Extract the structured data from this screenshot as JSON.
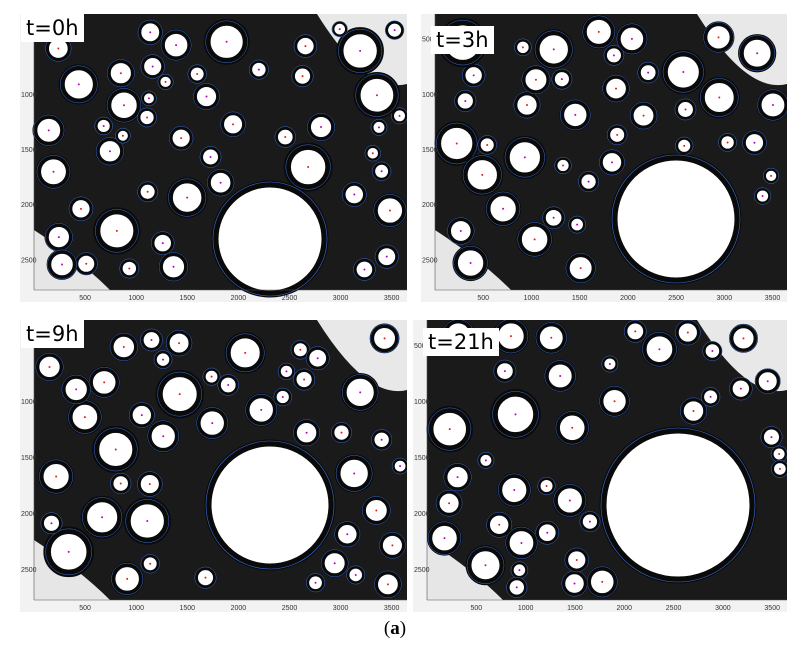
{
  "panels": [
    {
      "id": "p1",
      "time_label": "t=0h",
      "x_ticks": [
        "500",
        "1000",
        "1500",
        "2000",
        "2500",
        "3000",
        "3500"
      ],
      "y_ticks": [
        "500",
        "1000",
        "1500",
        "2000",
        "2500"
      ]
    },
    {
      "id": "p2",
      "time_label": "t=3h",
      "x_ticks": [
        "500",
        "1000",
        "1500",
        "2000",
        "2500",
        "3000",
        "3500"
      ],
      "y_ticks": [
        "500",
        "1000",
        "1500",
        "2000",
        "2500"
      ]
    },
    {
      "id": "p3",
      "time_label": "t=9h",
      "x_ticks": [
        "500",
        "1000",
        "1500",
        "2000",
        "2500",
        "3000",
        "3500"
      ],
      "y_ticks": [
        "500",
        "1000",
        "1500",
        "2000",
        "2500"
      ]
    },
    {
      "id": "p4",
      "time_label": "t=21h",
      "x_ticks": [
        "500",
        "1000",
        "1500",
        "2000",
        "2500",
        "3000",
        "3500"
      ],
      "y_ticks": [
        "500",
        "1000",
        "1500",
        "2000",
        "2500"
      ]
    }
  ],
  "caption": {
    "open": "(",
    "letter": "a",
    "close": ")"
  },
  "colors": {
    "bubble_border": "#0a0a0a",
    "bubble_fill": "#ffffff",
    "overlay_circle": "#3b6fd8",
    "label_red": "#e0201a",
    "label_magenta": "#c000c0"
  }
}
